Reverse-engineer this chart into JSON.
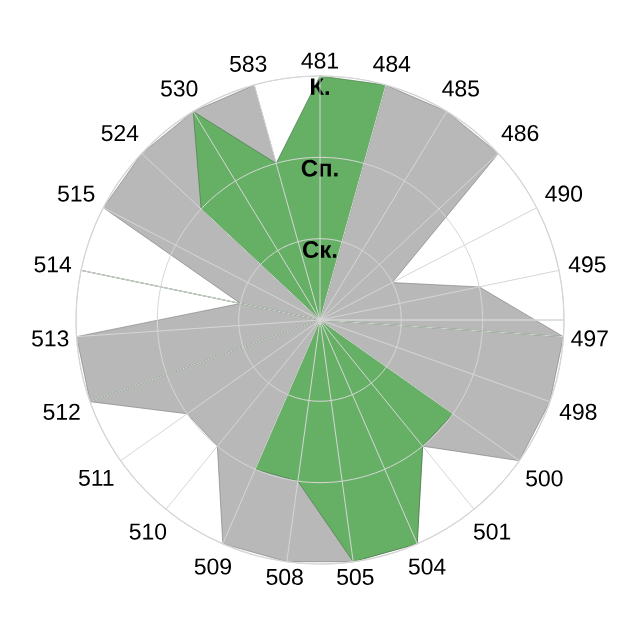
{
  "chart_data": {
    "type": "radar",
    "categories": [
      "481",
      "484",
      "485",
      "486",
      "490",
      "495",
      "497",
      "498",
      "500",
      "501",
      "504",
      "505",
      "508",
      "509",
      "510",
      "511",
      "512",
      "513",
      "514",
      "515",
      "524",
      "530",
      "583"
    ],
    "series": [
      {
        "color": "#b8b8b8",
        "values": [
          0,
          3,
          3,
          3,
          1,
          2,
          3,
          3,
          3,
          2,
          3,
          3,
          3,
          3,
          2,
          2,
          3,
          3,
          1,
          3,
          3,
          3,
          3
        ]
      },
      {
        "color": "#66b066",
        "values": [
          3,
          3,
          0,
          0,
          0,
          0,
          3,
          0,
          2,
          2,
          3,
          3,
          2,
          2,
          0,
          0,
          3,
          0,
          3,
          0,
          2,
          3,
          2
        ]
      }
    ],
    "ylim": [
      0,
      3
    ],
    "yticks": [
      {
        "value": 1,
        "label": "Ск."
      },
      {
        "value": 2,
        "label": "Сп."
      },
      {
        "value": 3,
        "label": "К."
      }
    ],
    "grid": true
  }
}
